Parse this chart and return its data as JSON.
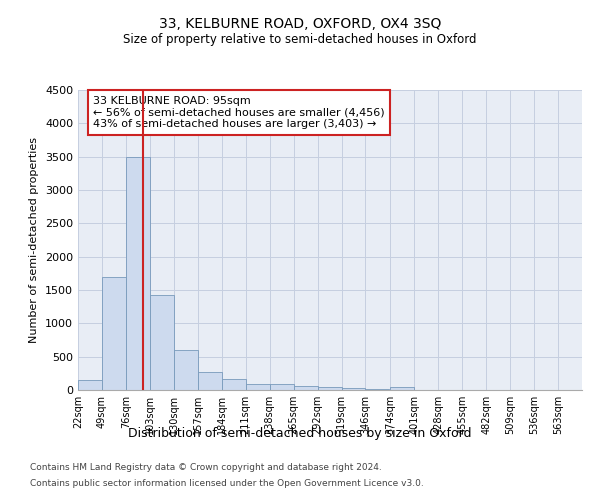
{
  "title": "33, KELBURNE ROAD, OXFORD, OX4 3SQ",
  "subtitle": "Size of property relative to semi-detached houses in Oxford",
  "xlabel": "Distribution of semi-detached houses by size in Oxford",
  "ylabel": "Number of semi-detached properties",
  "footnote1": "Contains HM Land Registry data © Crown copyright and database right 2024.",
  "footnote2": "Contains public sector information licensed under the Open Government Licence v3.0.",
  "annotation_title": "33 KELBURNE ROAD: 95sqm",
  "annotation_line1": "← 56% of semi-detached houses are smaller (4,456)",
  "annotation_line2": "43% of semi-detached houses are larger (3,403) →",
  "property_size": 95,
  "bin_labels": [
    "22sqm",
    "49sqm",
    "76sqm",
    "103sqm",
    "130sqm",
    "157sqm",
    "184sqm",
    "211sqm",
    "238sqm",
    "265sqm",
    "292sqm",
    "319sqm",
    "346sqm",
    "374sqm",
    "401sqm",
    "428sqm",
    "455sqm",
    "482sqm",
    "509sqm",
    "536sqm",
    "563sqm"
  ],
  "bin_left_edges": [
    22,
    49,
    76,
    103,
    130,
    157,
    184,
    211,
    238,
    265,
    292,
    319,
    346,
    374,
    401,
    428,
    455,
    482,
    509,
    536,
    563
  ],
  "bar_values": [
    150,
    1700,
    3500,
    1420,
    600,
    265,
    165,
    95,
    85,
    55,
    40,
    30,
    15,
    45,
    0,
    0,
    0,
    0,
    0,
    0
  ],
  "bar_color": "#cddaee",
  "bar_edge_color": "#7799bb",
  "red_line_color": "#cc2222",
  "annotation_box_edge": "#cc2222",
  "grid_color": "#c5cfe0",
  "background_color": "#e8edf5",
  "ylim": [
    0,
    4500
  ],
  "yticks": [
    0,
    500,
    1000,
    1500,
    2000,
    2500,
    3000,
    3500,
    4000,
    4500
  ]
}
